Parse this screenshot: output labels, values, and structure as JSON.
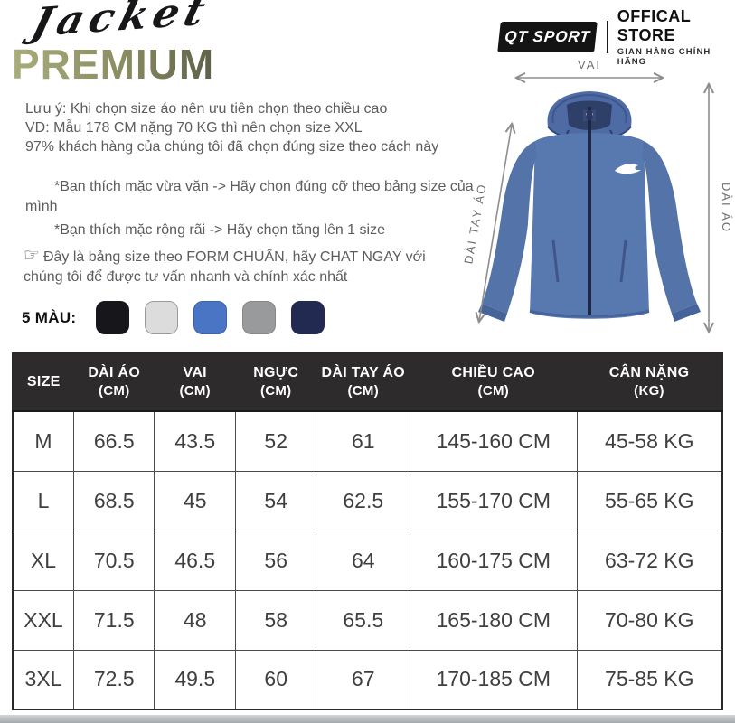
{
  "header": {
    "script_title": "Jacket",
    "premium_title": "PREMIUM",
    "brand": {
      "logo_text": "QT SPORT",
      "store_line1": "OFFICAL STORE",
      "store_line2": "GIAN HÀNG CHÍNH HÃNG"
    }
  },
  "notes": {
    "line1": "Lưu ý: Khi chọn size áo nên ưu tiên chọn theo chiều cao",
    "line2": "VD: Mẫu 178 CM nặng 70 KG thì nên chọn size XXL",
    "line3": "97% khách hàng của chúng tôi đã chọn đúng size theo cách này",
    "bullet1": "*Bạn thích mặc vừa vặn -> Hãy chọn đúng cỡ theo bảng size của mình",
    "bullet2": "*Bạn thích mặc rộng rãi -> Hãy chọn tăng lên 1 size",
    "finger_icon": "☞",
    "finger_text": "Đây là bảng size theo FORM CHUẨN, hãy CHAT NGAY với chúng tôi để được tư vấn nhanh và chính xác nhất"
  },
  "colors": {
    "label": "5 MÀU:",
    "swatches": [
      {
        "name": "black",
        "hex": "#17171b",
        "border": "#17171b"
      },
      {
        "name": "white",
        "hex": "#dcdcdc",
        "border": "#9a9a9a"
      },
      {
        "name": "blue",
        "hex": "#4a74c4",
        "border": "#3d63ad"
      },
      {
        "name": "gray",
        "hex": "#999a9c",
        "border": "#86878a"
      },
      {
        "name": "navy",
        "hex": "#232a52",
        "border": "#232a52"
      }
    ]
  },
  "diagram": {
    "shoulder_label": "VAI",
    "sleeve_label": "DÀI TAY ÁO",
    "length_label": "DÀI ÁO",
    "jacket_color": "#5878b0"
  },
  "size_table": {
    "columns": [
      {
        "label": "SIZE",
        "unit": ""
      },
      {
        "label": "DÀI ÁO",
        "unit": "(CM)"
      },
      {
        "label": "VAI",
        "unit": "(CM)"
      },
      {
        "label": "NGỰC",
        "unit": "(CM)"
      },
      {
        "label": "DÀI TAY ÁO",
        "unit": "(CM)"
      },
      {
        "label": "CHIỀU CAO",
        "unit": "(CM)"
      },
      {
        "label": "CÂN NẶNG",
        "unit": "(KG)"
      }
    ],
    "rows": [
      {
        "size": "M",
        "values": [
          "66.5",
          "43.5",
          "52",
          "61",
          "145-160 CM",
          "45-58 KG"
        ]
      },
      {
        "size": "L",
        "values": [
          "68.5",
          "45",
          "54",
          "62.5",
          "155-170 CM",
          "55-65 KG"
        ]
      },
      {
        "size": "XL",
        "values": [
          "70.5",
          "46.5",
          "56",
          "64",
          "160-175 CM",
          "63-72 KG"
        ]
      },
      {
        "size": "XXL",
        "values": [
          "71.5",
          "48",
          "58",
          "65.5",
          "165-180 CM",
          "70-80 KG"
        ]
      },
      {
        "size": "3XL",
        "values": [
          "72.5",
          "49.5",
          "60",
          "67",
          "170-185 CM",
          "75-85 KG"
        ]
      }
    ]
  }
}
